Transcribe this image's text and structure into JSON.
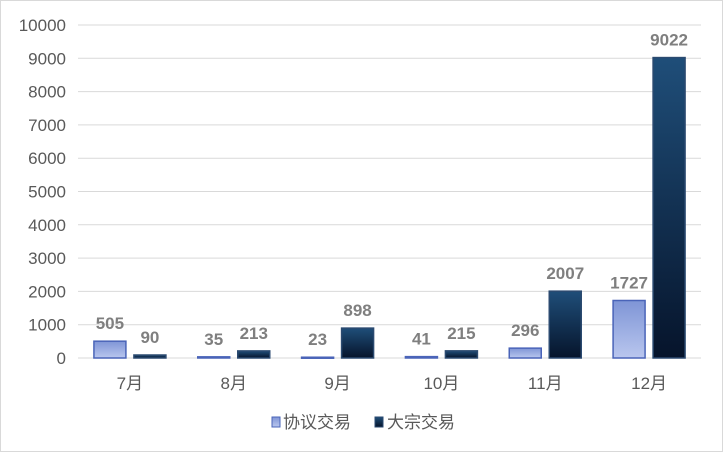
{
  "chart_data": {
    "type": "bar",
    "categories": [
      "7月",
      "8月",
      "9月",
      "10月",
      "11月",
      "12月"
    ],
    "series": [
      {
        "name": "协议交易",
        "values": [
          505,
          35,
          23,
          41,
          296,
          1727
        ],
        "color": "#8ea3df"
      },
      {
        "name": "大宗交易",
        "values": [
          90,
          213,
          898,
          215,
          2007,
          9022
        ],
        "color": "#16365c"
      }
    ],
    "ylim": [
      0,
      10000
    ],
    "yticks": [
      0,
      1000,
      2000,
      3000,
      4000,
      5000,
      6000,
      7000,
      8000,
      9000,
      10000
    ],
    "grid": true,
    "legend": "bottom",
    "title": "",
    "xlabel": "",
    "ylabel": ""
  }
}
